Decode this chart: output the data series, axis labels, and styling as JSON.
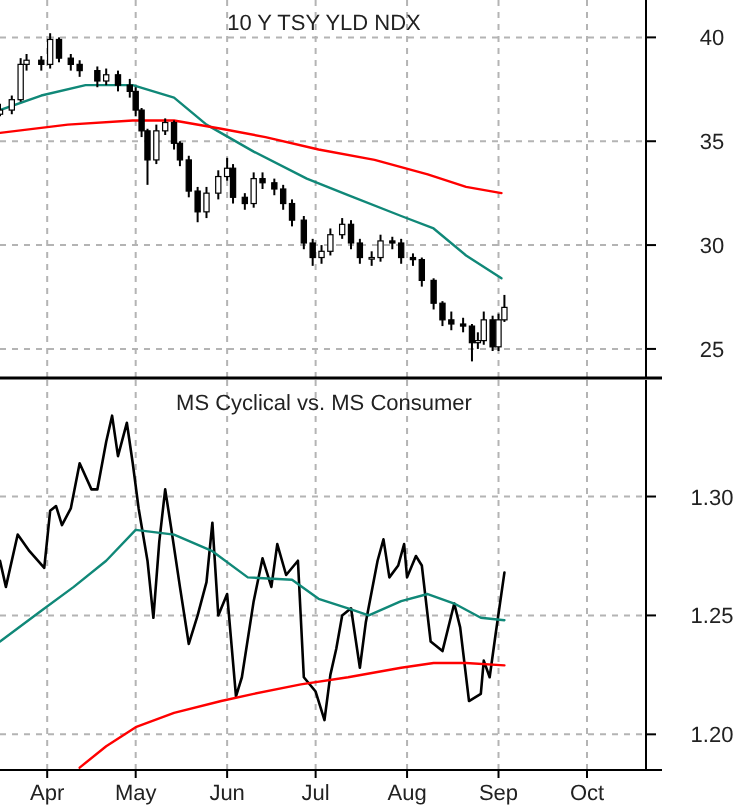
{
  "chart_data": [
    {
      "type": "candlestick",
      "title": "10 Y TSY YLD NDX",
      "grid": true,
      "tick_labels": "y",
      "xlim": [
        "--03-16",
        "--10-21"
      ],
      "xticks": [
        {
          "value": "--04-01",
          "label": null
        },
        {
          "value": "--05-01",
          "label": null
        },
        {
          "value": "--06-01",
          "label": null
        },
        {
          "value": "--07-01",
          "label": null
        },
        {
          "value": "--08-01",
          "label": null
        },
        {
          "value": "--09-01",
          "label": null
        },
        {
          "value": "--10-01",
          "label": null
        }
      ],
      "ylim": [
        23.6,
        41.8
      ],
      "yticks": [
        25,
        30,
        35,
        40
      ],
      "x": [
        "--03-16",
        "--03-20",
        "--03-23",
        "--03-25",
        "--03-30",
        "--04-02",
        "--04-05",
        "--04-09",
        "--04-12",
        "--04-18",
        "--04-21",
        "--04-25",
        "--04-29",
        "--05-01",
        "--05-03",
        "--05-05",
        "--05-08",
        "--05-11",
        "--05-14",
        "--05-16",
        "--05-19",
        "--05-22",
        "--05-25",
        "--05-29",
        "--06-01",
        "--06-03",
        "--06-07",
        "--06-10",
        "--06-13",
        "--06-17",
        "--06-20",
        "--06-23",
        "--06-27",
        "--06-30",
        "--07-03",
        "--07-06",
        "--07-10",
        "--07-13",
        "--07-16",
        "--07-20",
        "--07-23",
        "--07-27",
        "--07-30",
        "--08-03",
        "--08-06",
        "--08-10",
        "--08-13",
        "--08-16",
        "--08-20",
        "--08-23",
        "--08-25",
        "--08-27",
        "--08-30",
        "--09-01",
        "--09-03"
      ],
      "ohlc": [
        [
          36.3,
          36.8,
          36.2,
          36.5
        ],
        [
          36.5,
          37.2,
          36.3,
          37.0
        ],
        [
          37.0,
          39.0,
          36.9,
          38.7
        ],
        [
          38.7,
          39.2,
          38.4,
          38.9
        ],
        [
          38.9,
          39.1,
          38.4,
          38.7
        ],
        [
          38.7,
          40.2,
          38.5,
          39.9
        ],
        [
          39.9,
          40.0,
          38.8,
          39.0
        ],
        [
          39.0,
          39.2,
          38.4,
          38.7
        ],
        [
          38.7,
          38.9,
          38.1,
          38.4
        ],
        [
          38.4,
          38.6,
          37.6,
          37.9
        ],
        [
          37.9,
          38.5,
          37.7,
          38.2
        ],
        [
          38.2,
          38.4,
          37.4,
          37.7
        ],
        [
          37.7,
          38.0,
          37.1,
          37.4
        ],
        [
          37.4,
          37.6,
          36.2,
          36.5
        ],
        [
          36.5,
          36.6,
          35.2,
          35.5
        ],
        [
          35.5,
          35.6,
          32.9,
          34.1
        ],
        [
          34.1,
          35.8,
          33.9,
          35.5
        ],
        [
          35.5,
          36.1,
          35.3,
          35.9
        ],
        [
          35.9,
          36.0,
          34.6,
          34.9
        ],
        [
          34.9,
          35.0,
          33.8,
          34.1
        ],
        [
          34.1,
          34.3,
          32.3,
          32.6
        ],
        [
          32.6,
          32.8,
          31.1,
          31.6
        ],
        [
          31.6,
          32.8,
          31.3,
          32.5
        ],
        [
          32.5,
          33.6,
          32.2,
          33.3
        ],
        [
          33.3,
          34.2,
          33.1,
          33.7
        ],
        [
          33.7,
          33.9,
          32.0,
          32.3
        ],
        [
          32.3,
          32.5,
          31.7,
          32.0
        ],
        [
          32.0,
          33.5,
          31.8,
          33.2
        ],
        [
          33.2,
          33.5,
          32.7,
          33.0
        ],
        [
          33.0,
          33.2,
          32.4,
          32.7
        ],
        [
          32.7,
          32.9,
          31.7,
          32.0
        ],
        [
          32.0,
          32.2,
          30.9,
          31.2
        ],
        [
          31.2,
          31.4,
          29.8,
          30.1
        ],
        [
          30.1,
          30.3,
          29.0,
          29.4
        ],
        [
          29.4,
          30.0,
          29.1,
          29.7
        ],
        [
          29.7,
          30.8,
          29.5,
          30.5
        ],
        [
          30.5,
          31.3,
          30.3,
          31.0
        ],
        [
          31.0,
          31.2,
          29.8,
          30.1
        ],
        [
          30.1,
          30.3,
          29.1,
          29.4
        ],
        [
          29.4,
          29.7,
          29.0,
          29.4
        ],
        [
          29.4,
          30.5,
          29.2,
          30.2
        ],
        [
          30.2,
          30.4,
          29.8,
          30.1
        ],
        [
          30.1,
          30.3,
          29.1,
          29.4
        ],
        [
          29.4,
          29.6,
          29.0,
          29.3
        ],
        [
          29.3,
          29.4,
          28.0,
          28.3
        ],
        [
          28.3,
          28.4,
          26.9,
          27.2
        ],
        [
          27.2,
          27.3,
          26.1,
          26.4
        ],
        [
          26.4,
          26.8,
          25.9,
          26.2
        ],
        [
          26.2,
          26.5,
          25.8,
          26.1
        ],
        [
          26.1,
          26.2,
          24.4,
          25.3
        ],
        [
          25.3,
          25.8,
          25.0,
          25.4
        ],
        [
          25.4,
          26.8,
          25.2,
          26.4
        ],
        [
          26.4,
          26.6,
          24.9,
          25.1
        ],
        [
          25.1,
          26.7,
          24.9,
          26.4
        ],
        [
          26.4,
          27.6,
          26.3,
          27.0
        ]
      ],
      "series": [
        {
          "type": "line",
          "color": "#108878",
          "x": [
            "--03-16",
            "--03-30",
            "--04-14",
            "--04-30",
            "--05-14",
            "--05-25",
            "--06-10",
            "--06-28",
            "--07-12",
            "--07-30",
            "--08-10",
            "--08-21",
            "--09-02"
          ],
          "values": [
            36.5,
            37.2,
            37.7,
            37.7,
            37.1,
            35.8,
            34.5,
            33.2,
            32.4,
            31.4,
            30.8,
            29.5,
            28.4
          ]
        },
        {
          "type": "line",
          "color": "#ff0000",
          "x": [
            "--03-16",
            "--04-08",
            "--04-30",
            "--05-14",
            "--05-30",
            "--06-14",
            "--07-02",
            "--07-21",
            "--08-08",
            "--08-21",
            "--09-02"
          ],
          "values": [
            35.4,
            35.8,
            36.0,
            36.0,
            35.6,
            35.2,
            34.6,
            34.1,
            33.4,
            32.8,
            32.5
          ]
        }
      ]
    },
    {
      "type": "line",
      "title": "MS Cyclical vs. MS Consumer",
      "grid": true,
      "xlim": [
        "--03-16",
        "--10-21"
      ],
      "xticks": [
        {
          "value": "--04-01",
          "label": "Apr"
        },
        {
          "value": "--05-01",
          "label": "May"
        },
        {
          "value": "--06-01",
          "label": "Jun"
        },
        {
          "value": "--07-01",
          "label": "Jul"
        },
        {
          "value": "--08-01",
          "label": "Aug"
        },
        {
          "value": "--09-01",
          "label": "Sep"
        },
        {
          "value": "--10-01",
          "label": "Oct"
        }
      ],
      "ylim": [
        1.185,
        1.349
      ],
      "yticks": [
        {
          "value": 1.2,
          "label": "1.20"
        },
        {
          "value": 1.25,
          "label": "1.25"
        },
        {
          "value": 1.3,
          "label": "1.30"
        }
      ],
      "series": [
        {
          "color": "#000000",
          "x": [
            "--03-16",
            "--03-18",
            "--03-22",
            "--03-26",
            "--03-31",
            "--04-02",
            "--04-04",
            "--04-06",
            "--04-09",
            "--04-12",
            "--04-16",
            "--04-18",
            "--04-21",
            "--04-23",
            "--04-25",
            "--04-28",
            "--04-30",
            "--05-02",
            "--05-05",
            "--05-07",
            "--05-09",
            "--05-11",
            "--05-13",
            "--05-16",
            "--05-19",
            "--05-22",
            "--05-25",
            "--05-27",
            "--05-29",
            "--06-01",
            "--06-04",
            "--06-06",
            "--06-10",
            "--06-13",
            "--06-16",
            "--06-18",
            "--06-21",
            "--06-25",
            "--06-27",
            "--07-01",
            "--07-04",
            "--07-06",
            "--07-08",
            "--07-10",
            "--07-13",
            "--07-16",
            "--07-18",
            "--07-22",
            "--07-24",
            "--07-26",
            "--07-29",
            "--07-31",
            "--08-01",
            "--08-04",
            "--08-06",
            "--08-09",
            "--08-13",
            "--08-17",
            "--08-19",
            "--08-22",
            "--08-26",
            "--08-27",
            "--08-29",
            "--08-31",
            "--09-03"
          ],
          "values": [
            1.273,
            1.262,
            1.284,
            1.277,
            1.27,
            1.294,
            1.296,
            1.288,
            1.295,
            1.314,
            1.303,
            1.303,
            1.323,
            1.334,
            1.317,
            1.331,
            1.314,
            1.295,
            1.273,
            1.249,
            1.281,
            1.303,
            1.287,
            1.262,
            1.238,
            1.25,
            1.264,
            1.289,
            1.25,
            1.259,
            1.216,
            1.224,
            1.256,
            1.274,
            1.262,
            1.28,
            1.267,
            1.273,
            1.224,
            1.218,
            1.206,
            1.225,
            1.236,
            1.25,
            1.253,
            1.228,
            1.247,
            1.273,
            1.282,
            1.266,
            1.271,
            1.28,
            1.266,
            1.275,
            1.271,
            1.239,
            1.235,
            1.255,
            1.245,
            1.214,
            1.217,
            1.231,
            1.224,
            1.242,
            1.268
          ]
        },
        {
          "color": "#108878",
          "x": [
            "--03-16",
            "--03-30",
            "--04-10",
            "--04-21",
            "--05-01",
            "--05-14",
            "--05-27",
            "--06-08",
            "--06-23",
            "--07-02",
            "--07-12",
            "--07-19",
            "--07-30",
            "--08-08",
            "--08-17",
            "--08-26",
            "--09-03"
          ],
          "values": [
            1.239,
            1.252,
            1.262,
            1.273,
            1.286,
            1.284,
            1.277,
            1.266,
            1.265,
            1.257,
            1.253,
            1.25,
            1.256,
            1.259,
            1.255,
            1.249,
            1.248
          ]
        },
        {
          "color": "#ff0000",
          "x": [
            "--04-12",
            "--04-21",
            "--05-01",
            "--05-14",
            "--05-30",
            "--06-10",
            "--06-26",
            "--07-12",
            "--07-30",
            "--08-10",
            "--08-21",
            "--09-03"
          ],
          "values": [
            1.186,
            1.195,
            1.203,
            1.209,
            1.214,
            1.217,
            1.221,
            1.224,
            1.228,
            1.23,
            1.23,
            1.229
          ]
        }
      ]
    }
  ]
}
